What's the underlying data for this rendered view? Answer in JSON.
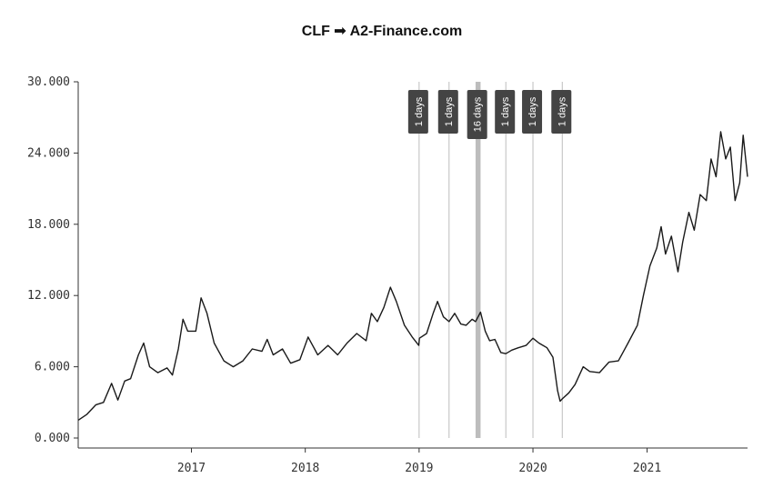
{
  "chart_data": {
    "type": "line",
    "title": "CLF ➟ A2-Finance.com",
    "ylim": [
      0,
      30
    ],
    "y_ticks": [
      "0.000",
      "6.000",
      "12.000",
      "18.000",
      "24.000",
      "30.000"
    ],
    "y_tick_values": [
      0,
      6,
      12,
      18,
      24,
      30
    ],
    "x_range": [
      "2016-01-04",
      "2021-11-19"
    ],
    "x_ticks": [
      "2017",
      "2018",
      "2019",
      "2020",
      "2021"
    ],
    "x_tick_dates": [
      "2017-01-01",
      "2018-01-01",
      "2019-01-01",
      "2020-01-01",
      "2021-01-01"
    ],
    "grid": false,
    "gaps": [
      {
        "label": "1 days",
        "date": "2019-01-01"
      },
      {
        "label": "1 days",
        "date": "2019-04-07"
      },
      {
        "label": "16 days",
        "date": "2019-07-01",
        "end": "2019-07-17"
      },
      {
        "label": "1 days",
        "date": "2019-10-06"
      },
      {
        "label": "1 days",
        "date": "2020-01-01"
      },
      {
        "label": "1 days",
        "date": "2020-04-04"
      }
    ],
    "series": [
      {
        "color": "#1a1a1a",
        "points": [
          [
            "2016-01-04",
            1.5
          ],
          [
            "2016-02-01",
            2.0
          ],
          [
            "2016-03-01",
            2.8
          ],
          [
            "2016-03-25",
            3.0
          ],
          [
            "2016-04-20",
            4.6
          ],
          [
            "2016-05-10",
            3.2
          ],
          [
            "2016-06-01",
            4.8
          ],
          [
            "2016-06-20",
            5.0
          ],
          [
            "2016-07-15",
            7.0
          ],
          [
            "2016-08-01",
            8.0
          ],
          [
            "2016-08-20",
            6.0
          ],
          [
            "2016-09-15",
            5.5
          ],
          [
            "2016-10-15",
            5.9
          ],
          [
            "2016-11-01",
            5.3
          ],
          [
            "2016-11-20",
            7.5
          ],
          [
            "2016-12-05",
            10.0
          ],
          [
            "2016-12-20",
            9.0
          ],
          [
            "2017-01-15",
            9.0
          ],
          [
            "2017-02-01",
            11.8
          ],
          [
            "2017-02-20",
            10.5
          ],
          [
            "2017-03-15",
            8.0
          ],
          [
            "2017-04-15",
            6.5
          ],
          [
            "2017-05-15",
            6.0
          ],
          [
            "2017-06-15",
            6.5
          ],
          [
            "2017-07-15",
            7.5
          ],
          [
            "2017-08-15",
            7.3
          ],
          [
            "2017-09-01",
            8.3
          ],
          [
            "2017-09-20",
            7.0
          ],
          [
            "2017-10-20",
            7.5
          ],
          [
            "2017-11-15",
            6.3
          ],
          [
            "2017-12-15",
            6.6
          ],
          [
            "2018-01-10",
            8.5
          ],
          [
            "2018-02-10",
            7.0
          ],
          [
            "2018-03-15",
            7.8
          ],
          [
            "2018-04-15",
            7.0
          ],
          [
            "2018-05-15",
            8.0
          ],
          [
            "2018-06-15",
            8.8
          ],
          [
            "2018-07-15",
            8.2
          ],
          [
            "2018-08-01",
            10.5
          ],
          [
            "2018-08-20",
            9.8
          ],
          [
            "2018-09-10",
            11.0
          ],
          [
            "2018-10-01",
            12.7
          ],
          [
            "2018-10-20",
            11.5
          ],
          [
            "2018-11-15",
            9.5
          ],
          [
            "2018-12-10",
            8.5
          ],
          [
            "2018-12-31",
            7.8
          ],
          [
            "2019-01-02",
            8.4
          ],
          [
            "2019-01-25",
            8.8
          ],
          [
            "2019-02-15",
            10.5
          ],
          [
            "2019-03-01",
            11.5
          ],
          [
            "2019-03-20",
            10.2
          ],
          [
            "2019-04-07",
            9.8
          ],
          [
            "2019-04-25",
            10.5
          ],
          [
            "2019-05-15",
            9.6
          ],
          [
            "2019-06-01",
            9.5
          ],
          [
            "2019-06-20",
            10.0
          ],
          [
            "2019-07-01",
            9.8
          ],
          [
            "2019-07-17",
            10.6
          ],
          [
            "2019-08-01",
            9.0
          ],
          [
            "2019-08-15",
            8.2
          ],
          [
            "2019-09-01",
            8.3
          ],
          [
            "2019-09-20",
            7.2
          ],
          [
            "2019-10-06",
            7.1
          ],
          [
            "2019-10-25",
            7.4
          ],
          [
            "2019-11-15",
            7.6
          ],
          [
            "2019-12-10",
            7.8
          ],
          [
            "2020-01-01",
            8.4
          ],
          [
            "2020-01-20",
            8.0
          ],
          [
            "2020-02-15",
            7.6
          ],
          [
            "2020-03-05",
            6.8
          ],
          [
            "2020-03-20",
            4.0
          ],
          [
            "2020-03-28",
            3.1
          ],
          [
            "2020-04-04",
            3.3
          ],
          [
            "2020-04-25",
            3.8
          ],
          [
            "2020-05-15",
            4.5
          ],
          [
            "2020-06-10",
            6.0
          ],
          [
            "2020-07-01",
            5.6
          ],
          [
            "2020-08-01",
            5.5
          ],
          [
            "2020-09-01",
            6.4
          ],
          [
            "2020-10-01",
            6.5
          ],
          [
            "2020-11-01",
            8.0
          ],
          [
            "2020-12-01",
            9.5
          ],
          [
            "2020-12-20",
            12.0
          ],
          [
            "2021-01-10",
            14.5
          ],
          [
            "2021-02-01",
            16.0
          ],
          [
            "2021-02-15",
            17.8
          ],
          [
            "2021-03-01",
            15.5
          ],
          [
            "2021-03-20",
            17.0
          ],
          [
            "2021-04-10",
            14.0
          ],
          [
            "2021-04-25",
            16.5
          ],
          [
            "2021-05-15",
            19.0
          ],
          [
            "2021-06-01",
            17.5
          ],
          [
            "2021-06-20",
            20.5
          ],
          [
            "2021-07-10",
            20.0
          ],
          [
            "2021-07-25",
            23.5
          ],
          [
            "2021-08-10",
            22.0
          ],
          [
            "2021-08-25",
            25.8
          ],
          [
            "2021-09-10",
            23.5
          ],
          [
            "2021-09-25",
            24.5
          ],
          [
            "2021-10-10",
            20.0
          ],
          [
            "2021-10-25",
            21.5
          ],
          [
            "2021-11-05",
            25.5
          ],
          [
            "2021-11-19",
            22.0
          ]
        ]
      }
    ]
  }
}
